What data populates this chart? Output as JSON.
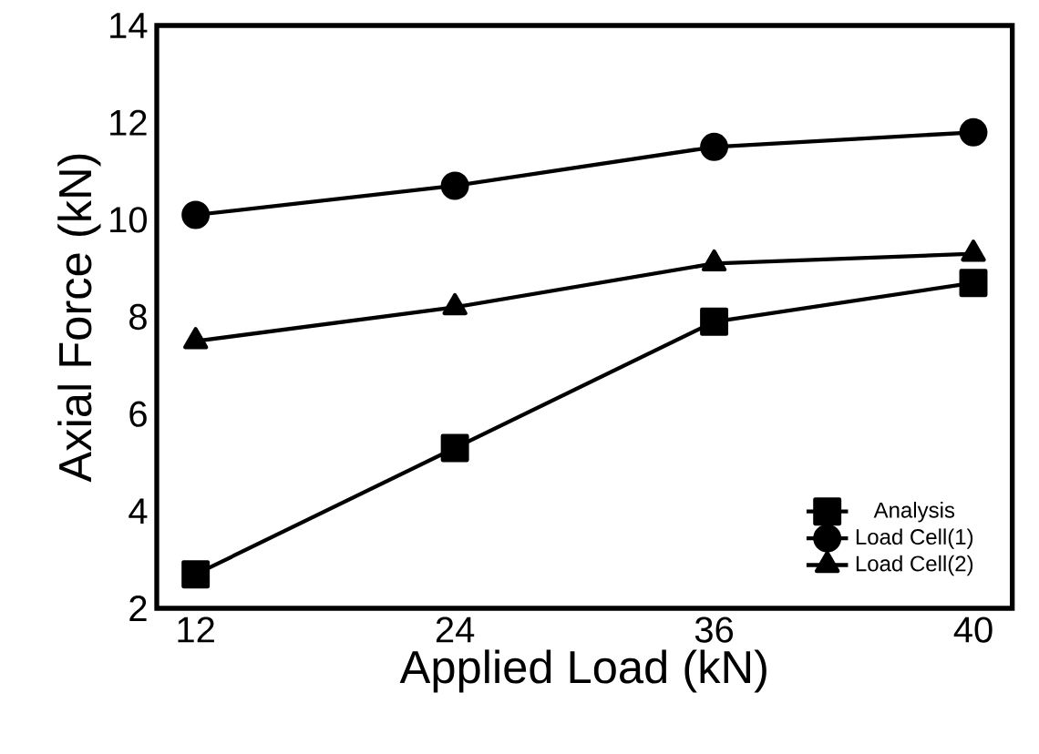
{
  "chart_data": {
    "type": "line",
    "xlabel": "Applied Load (kN)",
    "ylabel": "Axial Force (kN)",
    "categories": [
      "12",
      "24",
      "36",
      "40"
    ],
    "ylim": [
      2,
      14
    ],
    "yticks": [
      2,
      4,
      6,
      8,
      10,
      12,
      14
    ],
    "legend": "bottom right",
    "line_style": "solid",
    "series": [
      {
        "name": "Analysis",
        "color": "#000000",
        "marker": "square",
        "values": [
          2.7,
          5.3,
          7.9,
          8.7
        ]
      },
      {
        "name": "Load Cell(1)",
        "color": "#000000",
        "marker": "circle",
        "values": [
          10.1,
          10.7,
          11.5,
          11.8
        ]
      },
      {
        "name": "Load Cell(2)",
        "color": "#000000",
        "marker": "triangle",
        "values": [
          7.5,
          8.2,
          9.1,
          9.3
        ]
      }
    ]
  }
}
